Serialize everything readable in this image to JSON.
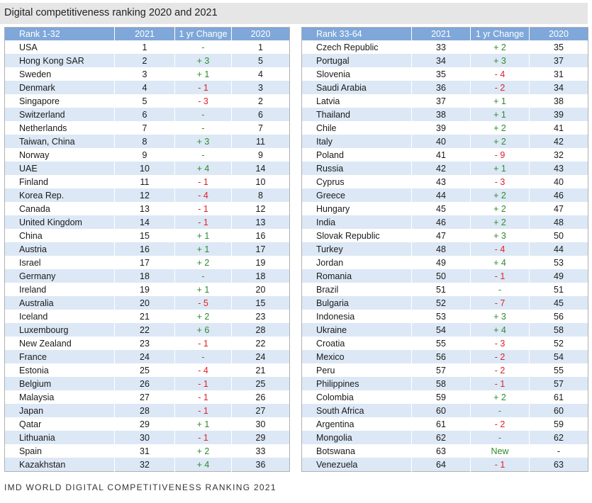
{
  "title": "Digital competitiveness ranking 2020 and 2021",
  "footer": "IMD WORLD DIGITAL COMPETITIVENESS RANKING 2021",
  "colors": {
    "header_bg": "#7fa7d9",
    "stripe": "#dce8f5",
    "positive": "#2e8b2e",
    "negative": "#e0202a"
  },
  "tables": [
    {
      "headers": [
        "Rank 1-32",
        "2021",
        "1 yr Change",
        "2020"
      ],
      "rows": [
        [
          "USA",
          "1",
          "-",
          "1"
        ],
        [
          "Hong Kong SAR",
          "2",
          "+ 3",
          "5"
        ],
        [
          "Sweden",
          "3",
          "+ 1",
          "4"
        ],
        [
          "Denmark",
          "4",
          "- 1",
          "3"
        ],
        [
          "Singapore",
          "5",
          "- 3",
          "2"
        ],
        [
          "Switzerland",
          "6",
          "-",
          "6"
        ],
        [
          "Netherlands",
          "7",
          "-",
          "7"
        ],
        [
          "Taiwan, China",
          "8",
          "+ 3",
          "11"
        ],
        [
          "Norway",
          "9",
          "-",
          "9"
        ],
        [
          "UAE",
          "10",
          "+ 4",
          "14"
        ],
        [
          "Finland",
          "11",
          "- 1",
          "10"
        ],
        [
          "Korea Rep.",
          "12",
          "- 4",
          "8"
        ],
        [
          "Canada",
          "13",
          "- 1",
          "12"
        ],
        [
          "United Kingdom",
          "14",
          "- 1",
          "13"
        ],
        [
          "China",
          "15",
          "+ 1",
          "16"
        ],
        [
          "Austria",
          "16",
          "+ 1",
          "17"
        ],
        [
          "Israel",
          "17",
          "+ 2",
          "19"
        ],
        [
          "Germany",
          "18",
          "-",
          "18"
        ],
        [
          "Ireland",
          "19",
          "+ 1",
          "20"
        ],
        [
          "Australia",
          "20",
          "- 5",
          "15"
        ],
        [
          "Iceland",
          "21",
          "+ 2",
          "23"
        ],
        [
          "Luxembourg",
          "22",
          "+ 6",
          "28"
        ],
        [
          "New Zealand",
          "23",
          "- 1",
          "22"
        ],
        [
          "France",
          "24",
          "-",
          "24"
        ],
        [
          "Estonia",
          "25",
          "- 4",
          "21"
        ],
        [
          "Belgium",
          "26",
          "- 1",
          "25"
        ],
        [
          "Malaysia",
          "27",
          "- 1",
          "26"
        ],
        [
          "Japan",
          "28",
          "- 1",
          "27"
        ],
        [
          "Qatar",
          "29",
          "+ 1",
          "30"
        ],
        [
          "Lithuania",
          "30",
          "- 1",
          "29"
        ],
        [
          "Spain",
          "31",
          "+ 2",
          "33"
        ],
        [
          "Kazakhstan",
          "32",
          "+ 4",
          "36"
        ]
      ]
    },
    {
      "headers": [
        "Rank 33-64",
        "2021",
        "1 yr Change",
        "2020"
      ],
      "rows": [
        [
          "Czech Republic",
          "33",
          "+ 2",
          "35"
        ],
        [
          "Portugal",
          "34",
          "+ 3",
          "37"
        ],
        [
          "Slovenia",
          "35",
          "- 4",
          "31"
        ],
        [
          "Saudi Arabia",
          "36",
          "- 2",
          "34"
        ],
        [
          "Latvia",
          "37",
          "+ 1",
          "38"
        ],
        [
          "Thailand",
          "38",
          "+ 1",
          "39"
        ],
        [
          "Chile",
          "39",
          "+ 2",
          "41"
        ],
        [
          "Italy",
          "40",
          "+ 2",
          "42"
        ],
        [
          "Poland",
          "41",
          "- 9",
          "32"
        ],
        [
          "Russia",
          "42",
          "+ 1",
          "43"
        ],
        [
          "Cyprus",
          "43",
          "- 3",
          "40"
        ],
        [
          "Greece",
          "44",
          "+ 2",
          "46"
        ],
        [
          "Hungary",
          "45",
          "+ 2",
          "47"
        ],
        [
          "India",
          "46",
          "+ 2",
          "48"
        ],
        [
          "Slovak Republic",
          "47",
          "+ 3",
          "50"
        ],
        [
          "Turkey",
          "48",
          "- 4",
          "44"
        ],
        [
          "Jordan",
          "49",
          "+ 4",
          "53"
        ],
        [
          "Romania",
          "50",
          "- 1",
          "49"
        ],
        [
          "Brazil",
          "51",
          "-",
          "51"
        ],
        [
          "Bulgaria",
          "52",
          "- 7",
          "45"
        ],
        [
          "Indonesia",
          "53",
          "+ 3",
          "56"
        ],
        [
          "Ukraine",
          "54",
          "+ 4",
          "58"
        ],
        [
          "Croatia",
          "55",
          "- 3",
          "52"
        ],
        [
          "Mexico",
          "56",
          "- 2",
          "54"
        ],
        [
          "Peru",
          "57",
          "- 2",
          "55"
        ],
        [
          "Philippines",
          "58",
          "- 1",
          "57"
        ],
        [
          "Colombia",
          "59",
          "+ 2",
          "61"
        ],
        [
          "South Africa",
          "60",
          "-",
          "60"
        ],
        [
          "Argentina",
          "61",
          "- 2",
          "59"
        ],
        [
          "Mongolia",
          "62",
          "-",
          "62"
        ],
        [
          "Botswana",
          "63",
          "New",
          "-"
        ],
        [
          "Venezuela",
          "64",
          "- 1",
          "63"
        ]
      ]
    }
  ]
}
